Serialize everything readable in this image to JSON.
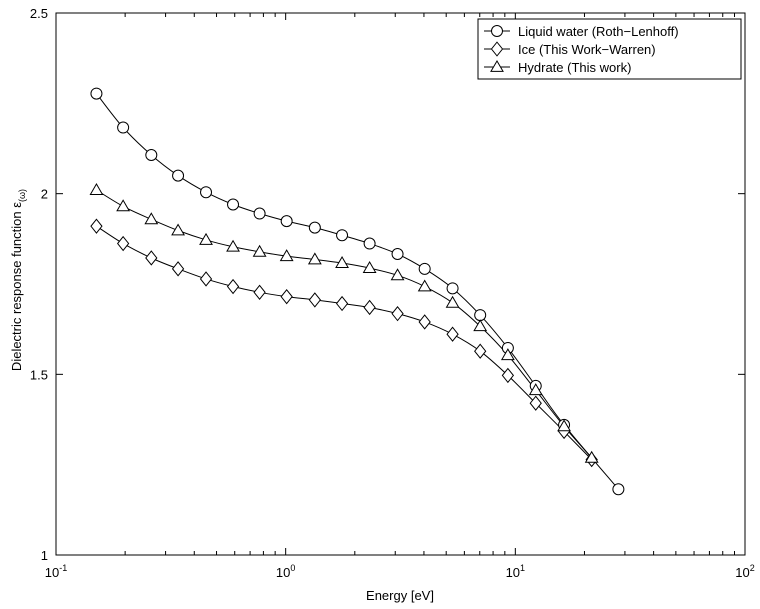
{
  "chart_data": {
    "type": "line",
    "x_scale": "log",
    "xlim": [
      0.1,
      100
    ],
    "ylim": [
      1,
      2.5
    ],
    "xlabel": "Energy [eV]",
    "ylabel": "Dielectric response function ε",
    "ylabel_subscript": "(ω)",
    "x_ticks": [
      {
        "base": "10",
        "exp": "-1"
      },
      {
        "base": "10",
        "exp": "0"
      },
      {
        "base": "10",
        "exp": "1"
      },
      {
        "base": "10",
        "exp": "2"
      }
    ],
    "y_ticks": [
      "1",
      "1.5",
      "2",
      "2.5"
    ],
    "grid": false,
    "legend_position": "top-right",
    "series": [
      {
        "name": "Liquid water (Roth−Lenhoff)",
        "marker": "circle",
        "color": "#000000",
        "points": [
          [
            0.15,
            2.277
          ],
          [
            0.196,
            2.183
          ],
          [
            0.26,
            2.107
          ],
          [
            0.34,
            2.05
          ],
          [
            0.45,
            2.004
          ],
          [
            0.59,
            1.97
          ],
          [
            0.77,
            1.945
          ],
          [
            1.01,
            1.924
          ],
          [
            1.34,
            1.906
          ],
          [
            1.76,
            1.885
          ],
          [
            2.32,
            1.862
          ],
          [
            3.07,
            1.833
          ],
          [
            4.03,
            1.792
          ],
          [
            5.33,
            1.738
          ],
          [
            7.03,
            1.664
          ],
          [
            9.28,
            1.573
          ],
          [
            12.27,
            1.468
          ],
          [
            16.3,
            1.36
          ],
          [
            28.1,
            1.182
          ]
        ]
      },
      {
        "name": "Ice (This Work−Warren)",
        "marker": "diamond",
        "color": "#000000",
        "points": [
          [
            0.15,
            1.91
          ],
          [
            0.196,
            1.862
          ],
          [
            0.26,
            1.822
          ],
          [
            0.34,
            1.792
          ],
          [
            0.45,
            1.764
          ],
          [
            0.59,
            1.743
          ],
          [
            0.77,
            1.727
          ],
          [
            1.01,
            1.715
          ],
          [
            1.34,
            1.706
          ],
          [
            1.76,
            1.696
          ],
          [
            2.32,
            1.685
          ],
          [
            3.07,
            1.668
          ],
          [
            4.03,
            1.645
          ],
          [
            5.33,
            1.611
          ],
          [
            7.03,
            1.564
          ],
          [
            9.28,
            1.497
          ],
          [
            12.27,
            1.42
          ],
          [
            16.3,
            1.342
          ],
          [
            21.5,
            1.264
          ]
        ]
      },
      {
        "name": "Hydrate (This work)",
        "marker": "triangle",
        "color": "#000000",
        "points": [
          [
            0.15,
            2.01
          ],
          [
            0.196,
            1.965
          ],
          [
            0.26,
            1.929
          ],
          [
            0.34,
            1.898
          ],
          [
            0.45,
            1.872
          ],
          [
            0.59,
            1.853
          ],
          [
            0.77,
            1.839
          ],
          [
            1.01,
            1.827
          ],
          [
            1.34,
            1.818
          ],
          [
            1.76,
            1.808
          ],
          [
            2.32,
            1.794
          ],
          [
            3.07,
            1.774
          ],
          [
            4.03,
            1.743
          ],
          [
            5.33,
            1.698
          ],
          [
            7.03,
            1.633
          ],
          [
            9.28,
            1.553
          ],
          [
            12.27,
            1.456
          ],
          [
            16.3,
            1.356
          ],
          [
            21.5,
            1.269
          ]
        ]
      }
    ]
  }
}
